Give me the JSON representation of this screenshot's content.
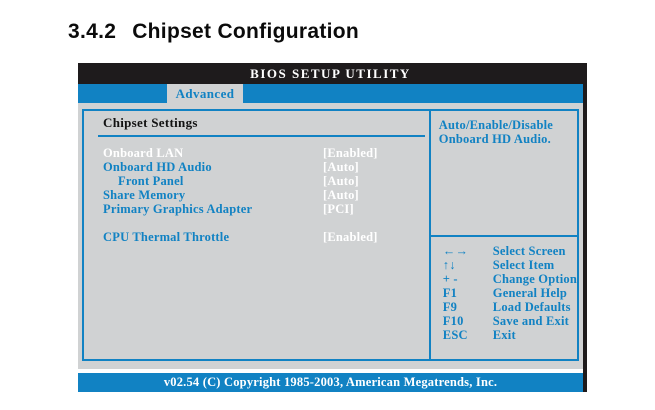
{
  "page": {
    "heading_number": "3.4.2",
    "heading_title": "Chipset Configuration"
  },
  "bios": {
    "title": "BIOS SETUP UTILITY",
    "tab": "Advanced",
    "section_title": "Chipset Settings",
    "options": [
      {
        "label": "Onboard LAN",
        "value": "[Enabled]",
        "selected": true
      },
      {
        "label": "Onboard HD Audio",
        "value": "[Auto]"
      },
      {
        "label": "Front Panel",
        "value": "[Auto]",
        "indent": true
      },
      {
        "label": "Share Memory",
        "value": "[Auto]"
      },
      {
        "label": "Primary Graphics Adapter",
        "value": "[PCI]"
      },
      {
        "spacer": true
      },
      {
        "label": "CPU Thermal Throttle",
        "value": "[Enabled]"
      }
    ],
    "help_text": [
      "Auto/Enable/Disable",
      "Onboard HD Audio."
    ],
    "legend": [
      {
        "key": "←→",
        "action": "Select Screen"
      },
      {
        "key": "↑↓",
        "action": "Select Item"
      },
      {
        "key": "+ -",
        "action": "Change Option"
      },
      {
        "key": "F1",
        "action": "General Help"
      },
      {
        "key": "F9",
        "action": "Load Defaults"
      },
      {
        "key": "F10",
        "action": "Save and Exit"
      },
      {
        "key": "ESC",
        "action": "Exit"
      }
    ],
    "footer": "v02.54 (C) Copyright 1985-2003, American Megatrends, Inc.",
    "colors": {
      "accent": "#1182c3",
      "panel_bg": "#d0d2d3",
      "titlebar_bg": "#1e1b1c"
    }
  }
}
